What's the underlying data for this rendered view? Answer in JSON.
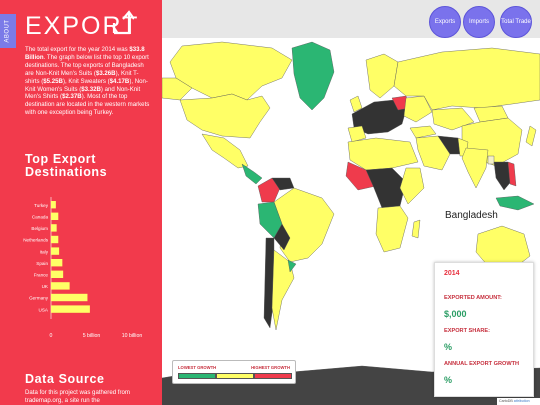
{
  "sidebar": {
    "about_tab": "ABOUT",
    "logo_text": "EXPORT",
    "intro": {
      "p1": "The total export for the year 2014 was",
      "total": "$33.8 Billion",
      "p2": ". The graph below list the top 10 export destinations. The top exports of Bangladesh are Non-Knit Men's Suits (",
      "v1": "$3.26B",
      "p3": "), Knit T-shirts (",
      "v2": "$5.25B",
      "p4": "), Knit Sweaters (",
      "v3": "$4.17B",
      "p5": "), Non-Knit Women's Suits (",
      "v4": "$3.32B",
      "p6": ") and Non-Knit Men's Shirts (",
      "v5": "$2.37B",
      "p7": "). Most of the top destination are located in the western markets with one exception being Turkey."
    },
    "top_heading": "Top Export Destinations",
    "source_heading": "Data Source",
    "source_text": "Data for this project was gathered from trademap.org, a site run the"
  },
  "chart_data": {
    "type": "bar",
    "orientation": "horizontal",
    "categories": [
      "Turkey",
      "Canada",
      "Belgium",
      "Netherlands",
      "Italy",
      "Spain",
      "France",
      "UK",
      "Germany",
      "USA"
    ],
    "values": [
      0.6,
      0.9,
      0.7,
      0.9,
      1.0,
      1.4,
      1.5,
      2.3,
      4.5,
      4.8
    ],
    "x_ticks": [
      "0",
      "5 billion",
      "10 billion"
    ],
    "xlim": [
      0,
      10
    ],
    "bar_color": "#ffff66"
  },
  "nav": {
    "exports": "Exports",
    "imports": "Imports",
    "total_trade": "Total Trade"
  },
  "map": {
    "country_label": "Bangladesh"
  },
  "info_card": {
    "year": "2014",
    "exported_label": "EXPORTED AMOUNT:",
    "exported_value": "$,000",
    "share_label": "EXPORT SHARE:",
    "share_value": "%",
    "growth_label": "ANNUAL EXPORT GROWTH",
    "growth_value": "%"
  },
  "legend": {
    "low_label": "LOWEST GROWTH",
    "high_label": "HIGHEST GROWTH",
    "colors": [
      "#2bb673",
      "#ffff66",
      "#ef3b4c"
    ]
  },
  "attribution": {
    "prefix": "CartoDB",
    "link": "attribution"
  }
}
